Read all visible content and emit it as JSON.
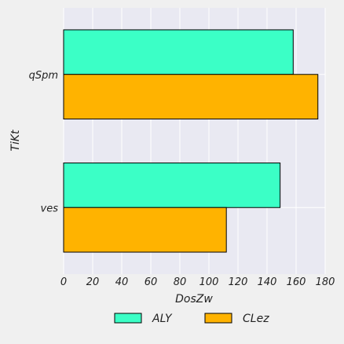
{
  "chart_data": {
    "type": "bar",
    "orientation": "horizontal",
    "categories": [
      "qSpm",
      "ves"
    ],
    "series": [
      {
        "name": "ALY",
        "values": [
          158,
          149
        ],
        "color": "#3bffc6"
      },
      {
        "name": "CLez",
        "values": [
          175,
          112
        ],
        "color": "#ffb300"
      }
    ],
    "xlabel": "DosZw",
    "ylabel": "TiKt",
    "xlim": [
      0,
      180
    ],
    "xticks": [
      0,
      20,
      40,
      60,
      80,
      100,
      120,
      140,
      160,
      180
    ],
    "grid": true,
    "legend": "bottom-center"
  },
  "colors": {
    "plot_background": "#e9e9f2",
    "page_background": "#f0f0f0",
    "grid": "#ffffff",
    "bar_edge": "#000000"
  }
}
